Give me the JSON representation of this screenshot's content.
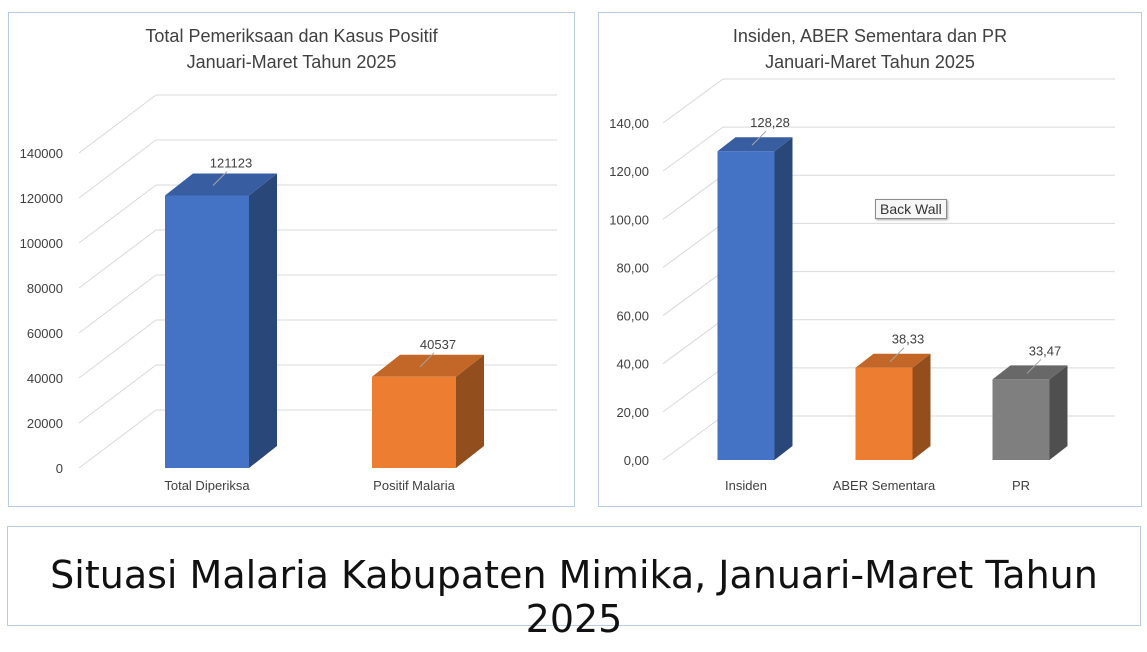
{
  "caption": "Situasi Malaria Kabupaten Mimika, Januari-Maret Tahun 2025",
  "tooltip": "Back Wall",
  "chart_data": [
    {
      "type": "bar",
      "title": [
        "Total Pemeriksaan dan Kasus Positif",
        "Januari-Maret Tahun 2025"
      ],
      "categories": [
        "Total Diperiksa",
        "Positif Malaria"
      ],
      "values": [
        121123,
        40537
      ],
      "value_labels": [
        "121123",
        "40537"
      ],
      "colors": [
        "#4472c4",
        "#ed7d31"
      ],
      "ylim": [
        0,
        140000
      ],
      "yticks": [
        "0",
        "20000",
        "40000",
        "60000",
        "80000",
        "100000",
        "120000",
        "140000"
      ],
      "grid": true
    },
    {
      "type": "bar",
      "title": [
        "Insiden, ABER Sementara dan PR",
        "Januari-Maret Tahun 2025"
      ],
      "categories": [
        "Insiden",
        "ABER Sementara",
        "PR"
      ],
      "values": [
        128.28,
        38.33,
        33.47
      ],
      "value_labels": [
        "128,28",
        "38,33",
        "33,47"
      ],
      "colors": [
        "#4472c4",
        "#ed7d31",
        "#7f7f7f"
      ],
      "ylim": [
        0,
        140
      ],
      "yticks": [
        "0,00",
        "20,00",
        "40,00",
        "60,00",
        "80,00",
        "100,00",
        "120,00",
        "140,00"
      ],
      "grid": true
    }
  ]
}
